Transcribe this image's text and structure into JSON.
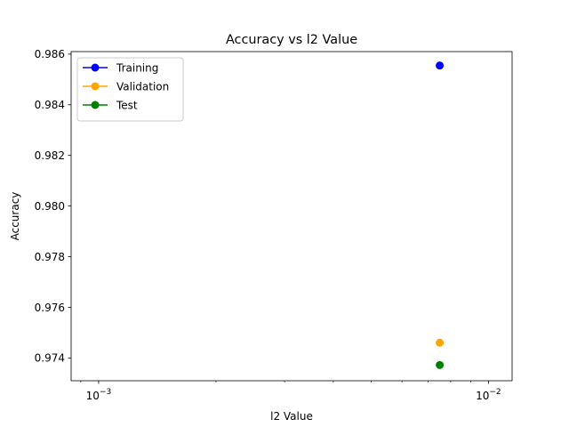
{
  "chart_data": {
    "type": "scatter",
    "title": "Accuracy vs l2 Value",
    "xlabel": "l2 Value",
    "ylabel": "Accuracy",
    "x_scale": "log",
    "xlim": [
      0.00085,
      0.0115
    ],
    "ylim": [
      0.9731,
      0.9861
    ],
    "x_ticks": [
      {
        "value": 0.001,
        "base": "10",
        "exp": "−3"
      },
      {
        "value": 0.01,
        "base": "10",
        "exp": "−2"
      }
    ],
    "y_ticks": [
      {
        "value": 0.974,
        "label": "0.974"
      },
      {
        "value": 0.976,
        "label": "0.976"
      },
      {
        "value": 0.978,
        "label": "0.978"
      },
      {
        "value": 0.98,
        "label": "0.980"
      },
      {
        "value": 0.982,
        "label": "0.982"
      },
      {
        "value": 0.984,
        "label": "0.984"
      },
      {
        "value": 0.986,
        "label": "0.986"
      }
    ],
    "grid": false,
    "legend_position": "top-left",
    "series": [
      {
        "name": "Training",
        "color": "#0000ff",
        "points": [
          {
            "x": 0.0075,
            "y": 0.98555
          }
        ]
      },
      {
        "name": "Validation",
        "color": "#ffa500",
        "points": [
          {
            "x": 0.0075,
            "y": 0.9746
          }
        ]
      },
      {
        "name": "Test",
        "color": "#008000",
        "points": [
          {
            "x": 0.0075,
            "y": 0.97372
          }
        ]
      }
    ]
  }
}
